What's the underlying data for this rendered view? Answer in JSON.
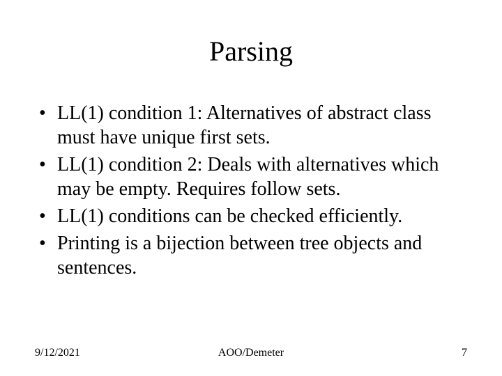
{
  "slide": {
    "title": "Parsing",
    "title_fontsize": 40,
    "body_fontsize": 28,
    "footer_fontsize": 16,
    "text_color": "#000000",
    "background_color": "#ffffff",
    "font_family": "Times New Roman",
    "bullets": [
      "LL(1) condition 1: Alternatives of abstract class must have unique first sets.",
      "LL(1) condition 2: Deals with alternatives which may be empty. Requires follow sets.",
      "LL(1) conditions can be checked efficiently.",
      "Printing is a bijection between tree objects and sentences."
    ],
    "footer": {
      "date": "9/12/2021",
      "center": "AOO/Demeter",
      "page": "7"
    }
  }
}
